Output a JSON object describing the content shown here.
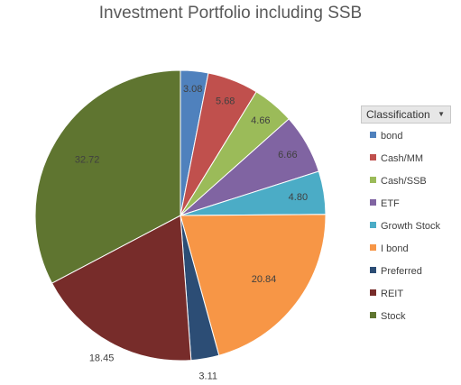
{
  "title": "Investment Portfolio including SSB",
  "legend": {
    "header": "Classification",
    "dropdown_icon": "triangle-down-icon"
  },
  "chart_data": {
    "type": "pie",
    "title": "Investment Portfolio including SSB",
    "legend_title": "Classification",
    "legend_position": "right",
    "categories": [
      "bond",
      "Cash/MM",
      "Cash/SSB",
      "ETF",
      "Growth Stock",
      "I bond",
      "Preferred",
      "REIT",
      "Stock"
    ],
    "values": [
      3.08,
      5.68,
      4.66,
      6.66,
      4.8,
      20.84,
      3.11,
      18.45,
      32.72
    ],
    "labels": [
      "3.08",
      "5.68",
      "4.66",
      "6.66",
      "4.80",
      "20.84",
      "3.11",
      "18.45",
      "32.72"
    ],
    "colors": [
      "#4f81bd",
      "#c0504d",
      "#9bbb59",
      "#8064a2",
      "#4bacc6",
      "#f79646",
      "#2c4d75",
      "#772c2a",
      "#5f7530"
    ]
  }
}
